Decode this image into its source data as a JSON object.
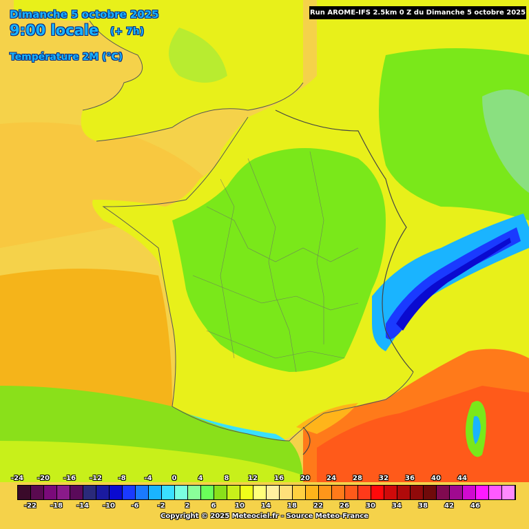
{
  "header": {
    "date": "Dimanche 5 octobre 2025",
    "time": "9:00 locale",
    "offset": "(+ 7h)",
    "parameter": "Température 2M (°C)",
    "run": "Run AROME-IFS 2.5km 0 Z du Dimanche 5 octobre 2025"
  },
  "legend": {
    "top_labels": [
      "-24",
      "-20",
      "-16",
      "-12",
      "-8",
      "-4",
      "0",
      "4",
      "8",
      "12",
      "16",
      "20",
      "24",
      "28",
      "32",
      "36",
      "40",
      "44"
    ],
    "bottom_labels": [
      "-22",
      "-18",
      "-14",
      "-10",
      "-6",
      "-2",
      "2",
      "6",
      "10",
      "14",
      "18",
      "22",
      "26",
      "30",
      "34",
      "38",
      "42",
      "46"
    ],
    "colors": [
      "#3a0a2a",
      "#5a0a50",
      "#7a0a7a",
      "#8a1a8a",
      "#5a0a5a",
      "#2a2a7a",
      "#1a1aa0",
      "#0a0ad0",
      "#1a3aff",
      "#1a7aff",
      "#1ab4ff",
      "#3ae0ff",
      "#7affe0",
      "#8aff9a",
      "#6aff5a",
      "#8ae01a",
      "#c8f01a",
      "#f0ff1a",
      "#ffff7a",
      "#fff0a0",
      "#ffe07a",
      "#ffd040",
      "#ffb41a",
      "#ff961a",
      "#ff7a1a",
      "#ff5a1a",
      "#ff3a1a",
      "#ff0a0a",
      "#d00a0a",
      "#b00a0a",
      "#900a0a",
      "#700a0a",
      "#800a50",
      "#a00a90",
      "#d00ad0",
      "#ff1aff",
      "#ff5aff",
      "#ff8aff"
    ],
    "copyright": "Copyright © 2025 Meteociel.fr - Source Meteo-France"
  },
  "palette": {
    "sea_warm": "#f5d24a",
    "atlantic": "#f5b41a",
    "mediterranean": "#ff7a1a",
    "land_green": "#7ae81a",
    "land_yellow": "#e8f01a",
    "alps_blue": "#1a3aff"
  }
}
